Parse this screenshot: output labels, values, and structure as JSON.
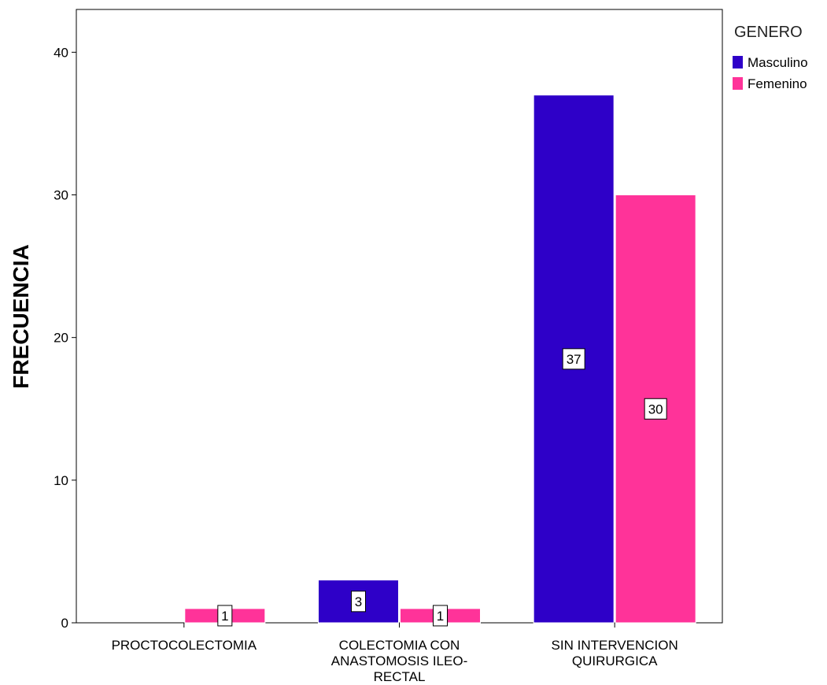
{
  "chart_data": {
    "type": "bar",
    "ylabel": "FRECUENCIA",
    "xlabel": "",
    "categories": [
      [
        "PROCTOCOLECTOMIA"
      ],
      [
        "COLECTOMIA CON",
        "ANASTOMOSIS ILEO-",
        "RECTAL"
      ],
      [
        "SIN INTERVENCION",
        "QUIRURGICA"
      ]
    ],
    "series": [
      {
        "name": "Masculino",
        "color": "#2e00c8",
        "values": [
          null,
          3,
          37
        ]
      },
      {
        "name": "Femenino",
        "color": "#ff3399",
        "values": [
          1,
          1,
          30
        ]
      }
    ],
    "ylim": [
      0,
      43
    ],
    "yticks": [
      0,
      10,
      20,
      30,
      40
    ],
    "legend": {
      "title": "GENERO",
      "position": "right"
    },
    "grid": false
  }
}
